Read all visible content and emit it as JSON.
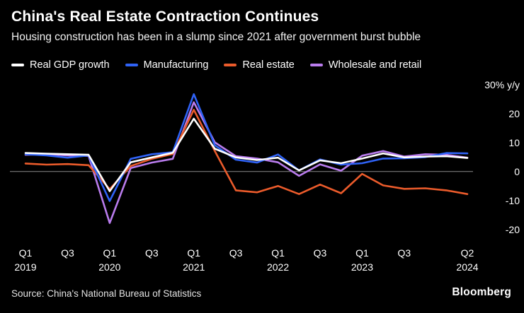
{
  "header": {
    "title": "China's Real Estate Contraction Continues",
    "subtitle": "Housing construction has been in a slump since 2021 after government burst bubble"
  },
  "footer": {
    "source": "Source: China's National Bureau of Statistics",
    "brand": "Bloomberg"
  },
  "colors": {
    "background": "#000000",
    "zero_line": "#8a8a8a",
    "text": "#ffffff"
  },
  "chart_data": {
    "type": "line",
    "title": "China's Real Estate Contraction Continues",
    "subtitle": "Housing construction has been in a slump since 2021 after government burst bubble",
    "unit_label": "30% y/y",
    "legend_position": "top",
    "grid": false,
    "zero_line": true,
    "ylim": [
      -25,
      32
    ],
    "categories": [
      "2019 Q1",
      "2019 Q2",
      "2019 Q3",
      "2019 Q4",
      "2020 Q1",
      "2020 Q2",
      "2020 Q3",
      "2020 Q4",
      "2021 Q1",
      "2021 Q2",
      "2021 Q3",
      "2021 Q4",
      "2022 Q1",
      "2022 Q2",
      "2022 Q3",
      "2022 Q4",
      "2023 Q1",
      "2023 Q2",
      "2023 Q3",
      "2023 Q4",
      "2024 Q1",
      "2024 Q2"
    ],
    "series": [
      {
        "name": "Real GDP growth",
        "color": "#ffffff",
        "values": [
          6.4,
          6.2,
          6.0,
          5.8,
          -6.8,
          3.2,
          4.9,
          6.5,
          18.3,
          7.9,
          4.9,
          4.0,
          4.8,
          0.4,
          3.9,
          2.9,
          4.5,
          6.3,
          4.9,
          5.2,
          5.3,
          4.7
        ]
      },
      {
        "name": "Manufacturing",
        "color": "#2f62f5",
        "values": [
          6.0,
          5.6,
          4.8,
          5.6,
          -10.2,
          4.4,
          6.0,
          6.7,
          26.8,
          9.1,
          4.1,
          3.1,
          5.9,
          0.4,
          4.2,
          2.4,
          2.9,
          4.5,
          4.6,
          5.0,
          6.4,
          6.3
        ]
      },
      {
        "name": "Real estate",
        "color": "#eb5b2b",
        "values": [
          2.8,
          2.4,
          2.6,
          2.2,
          -6.1,
          1.9,
          4.4,
          6.1,
          21.4,
          7.1,
          -6.5,
          -7.2,
          -5.0,
          -7.8,
          -4.5,
          -7.5,
          -0.8,
          -4.8,
          -6.0,
          -5.8,
          -6.5,
          -7.8
        ]
      },
      {
        "name": "Wholesale and retail",
        "color": "#b97ced",
        "values": [
          5.8,
          6.0,
          5.6,
          5.4,
          -17.8,
          1.2,
          3.1,
          4.4,
          24.0,
          10.1,
          5.3,
          4.5,
          3.2,
          -1.5,
          2.5,
          0.3,
          5.5,
          7.1,
          5.2,
          6.0,
          5.8,
          4.8
        ]
      }
    ],
    "y_ticks": [
      {
        "value": 30,
        "label": "30% y/y"
      },
      {
        "value": 20,
        "label": "20"
      },
      {
        "value": 10,
        "label": "10"
      },
      {
        "value": 0,
        "label": "0"
      },
      {
        "value": -10,
        "label": "-10"
      },
      {
        "value": -20,
        "label": "-20"
      }
    ],
    "x_ticks": [
      {
        "index": 0,
        "label": "Q1",
        "year": "2019"
      },
      {
        "index": 2,
        "label": "Q3"
      },
      {
        "index": 4,
        "label": "Q1",
        "year": "2020"
      },
      {
        "index": 6,
        "label": "Q3"
      },
      {
        "index": 8,
        "label": "Q1",
        "year": "2021"
      },
      {
        "index": 10,
        "label": "Q3"
      },
      {
        "index": 12,
        "label": "Q1",
        "year": "2022"
      },
      {
        "index": 14,
        "label": "Q3"
      },
      {
        "index": 16,
        "label": "Q1",
        "year": "2023"
      },
      {
        "index": 18,
        "label": "Q3"
      },
      {
        "index": 21,
        "label": "Q2",
        "year": "2024"
      }
    ]
  }
}
